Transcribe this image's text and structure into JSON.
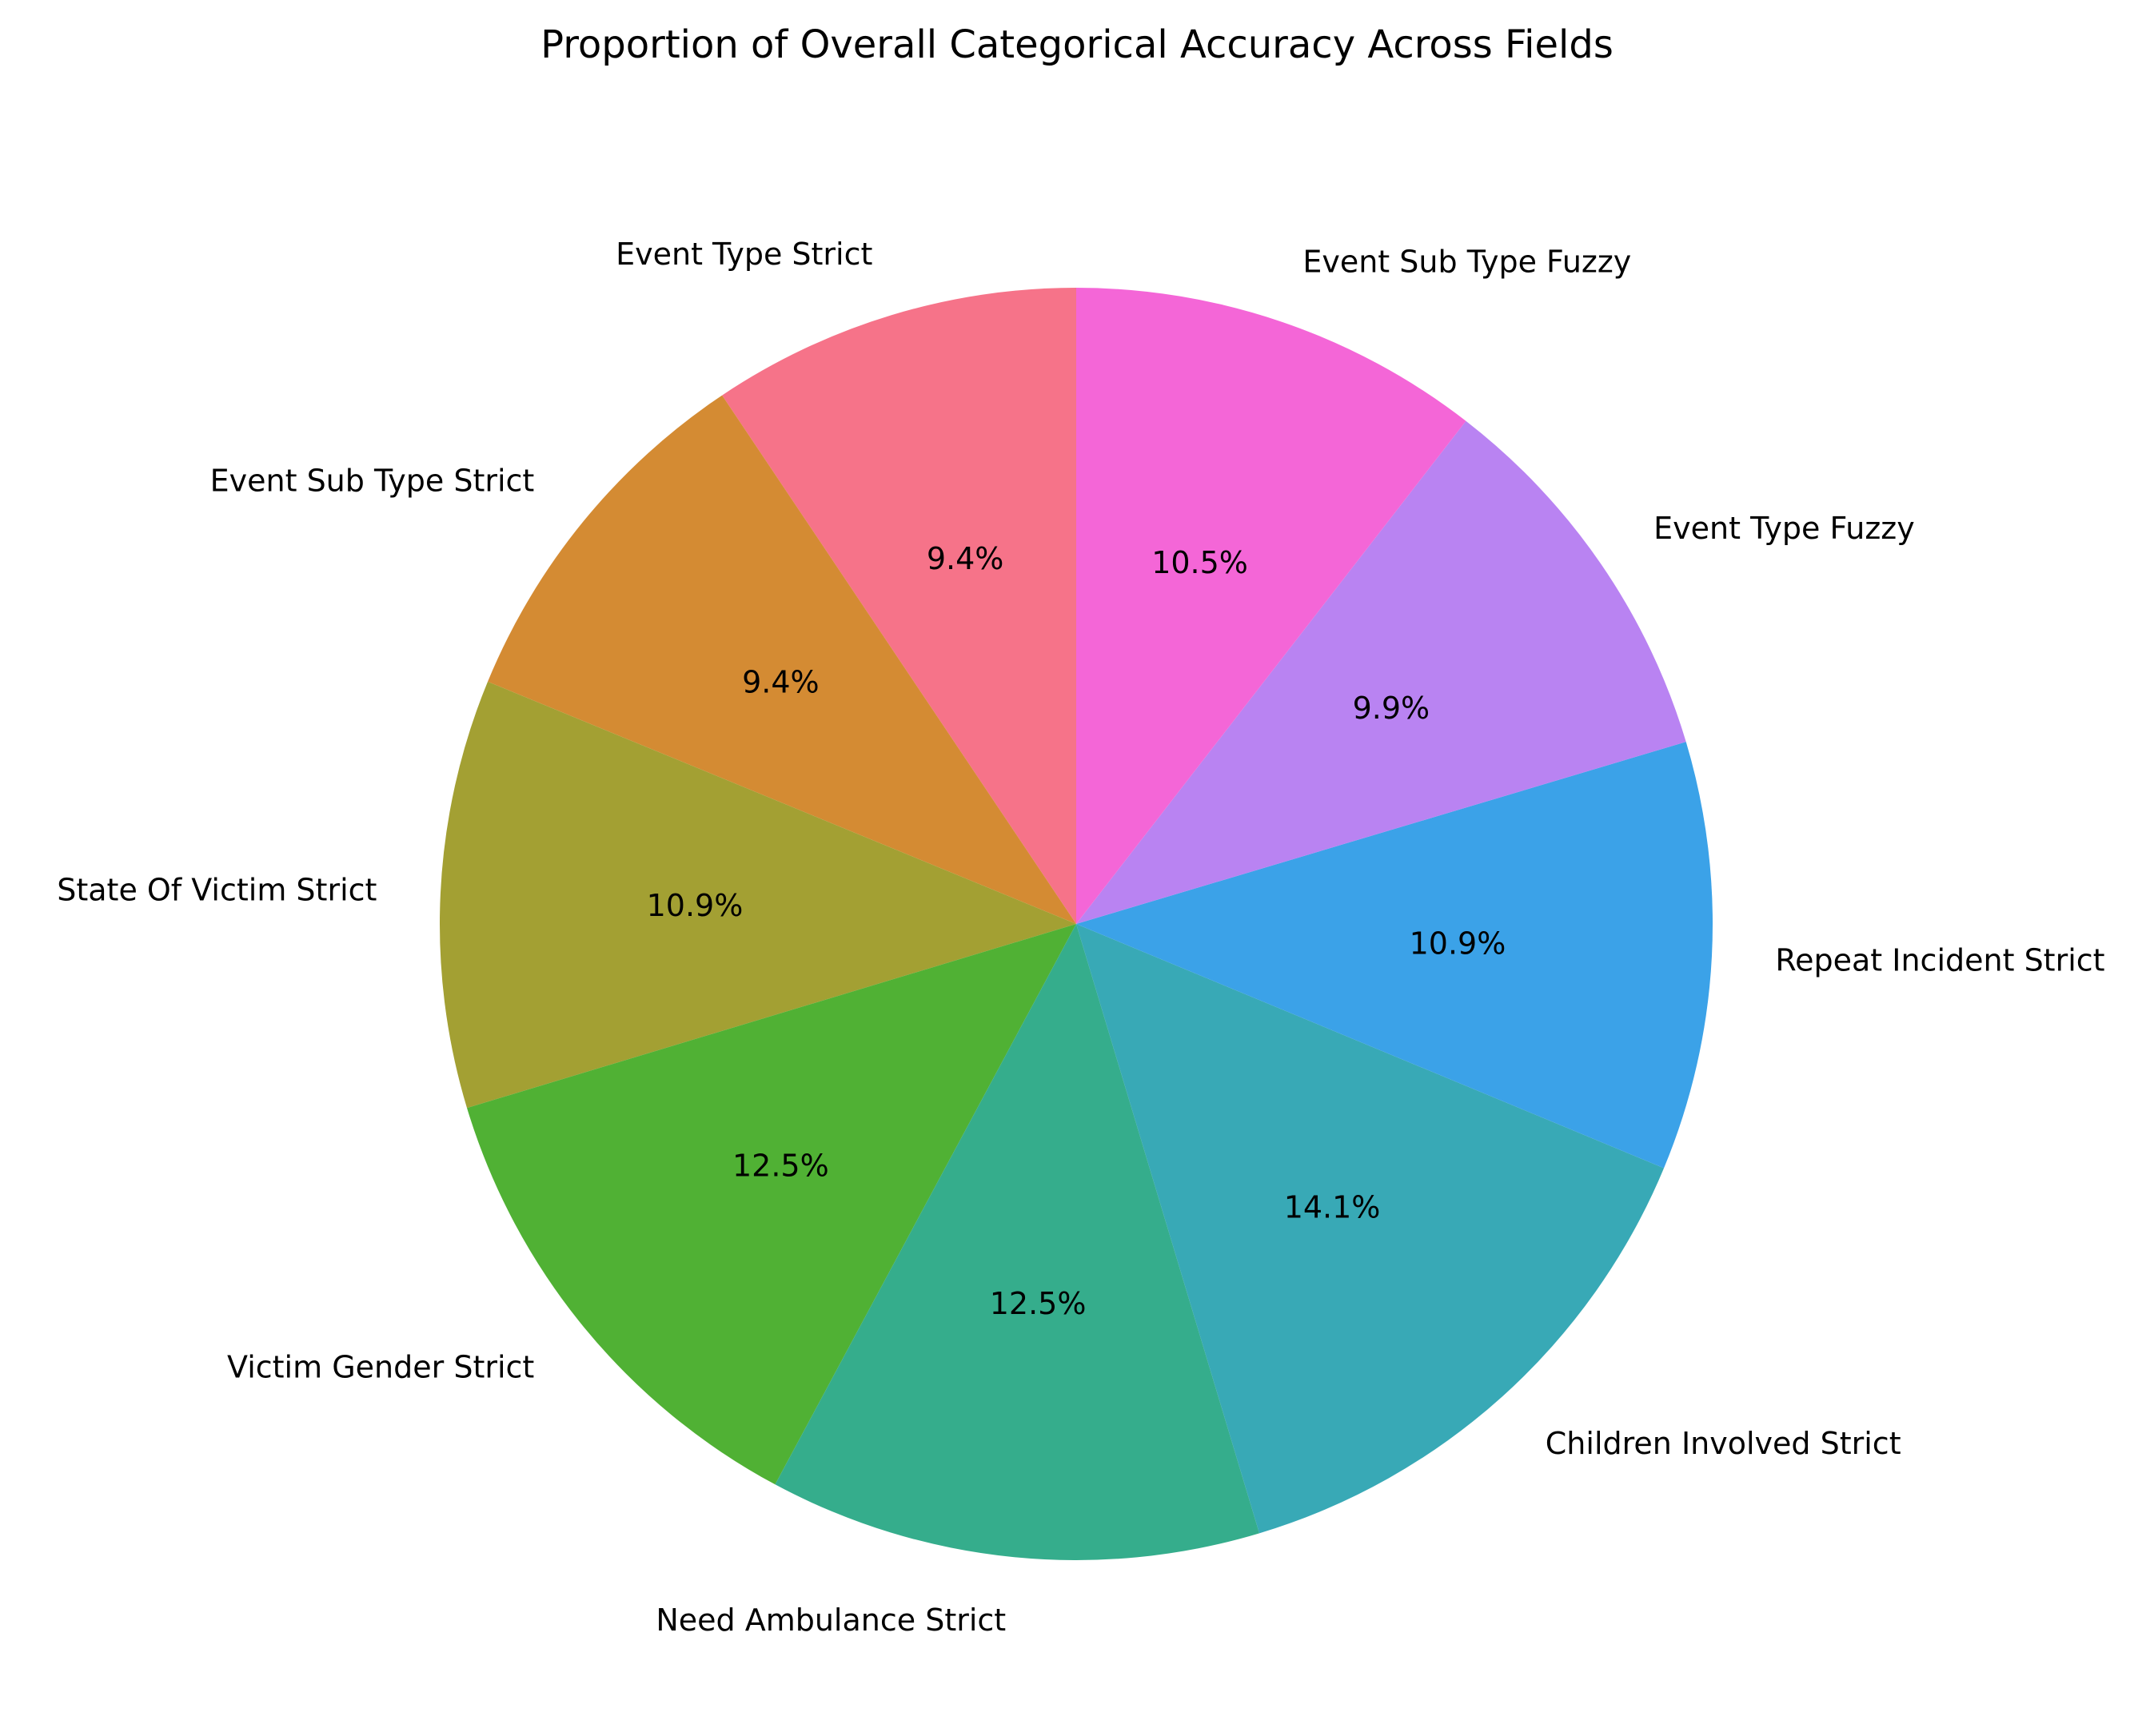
{
  "chart_data": {
    "type": "pie",
    "title": "Proportion of Overall Categorical Accuracy Across Fields",
    "start_angle_deg": 90,
    "direction": "counterclockwise",
    "slices": [
      {
        "label": "Event Type Strict",
        "value": 9.4,
        "pct_label": "9.4%",
        "color": "#f67389"
      },
      {
        "label": "Event Sub Type Strict",
        "value": 9.4,
        "pct_label": "9.4%",
        "color": "#d48b33"
      },
      {
        "label": "State Of Victim Strict",
        "value": 10.9,
        "pct_label": "10.9%",
        "color": "#a3a033"
      },
      {
        "label": "Victim Gender Strict",
        "value": 12.5,
        "pct_label": "12.5%",
        "color": "#50b134"
      },
      {
        "label": "Need Ambulance Strict",
        "value": 12.5,
        "pct_label": "12.5%",
        "color": "#35ad8c"
      },
      {
        "label": "Children Involved Strict",
        "value": 14.1,
        "pct_label": "14.1%",
        "color": "#38a9b6"
      },
      {
        "label": "Repeat Incident Strict",
        "value": 10.9,
        "pct_label": "10.9%",
        "color": "#3ba2e8"
      },
      {
        "label": "Event Type Fuzzy",
        "value": 9.9,
        "pct_label": "9.9%",
        "color": "#b983f2"
      },
      {
        "label": "Event Sub Type Fuzzy",
        "value": 10.5,
        "pct_label": "10.5%",
        "color": "#f466d7"
      }
    ]
  }
}
